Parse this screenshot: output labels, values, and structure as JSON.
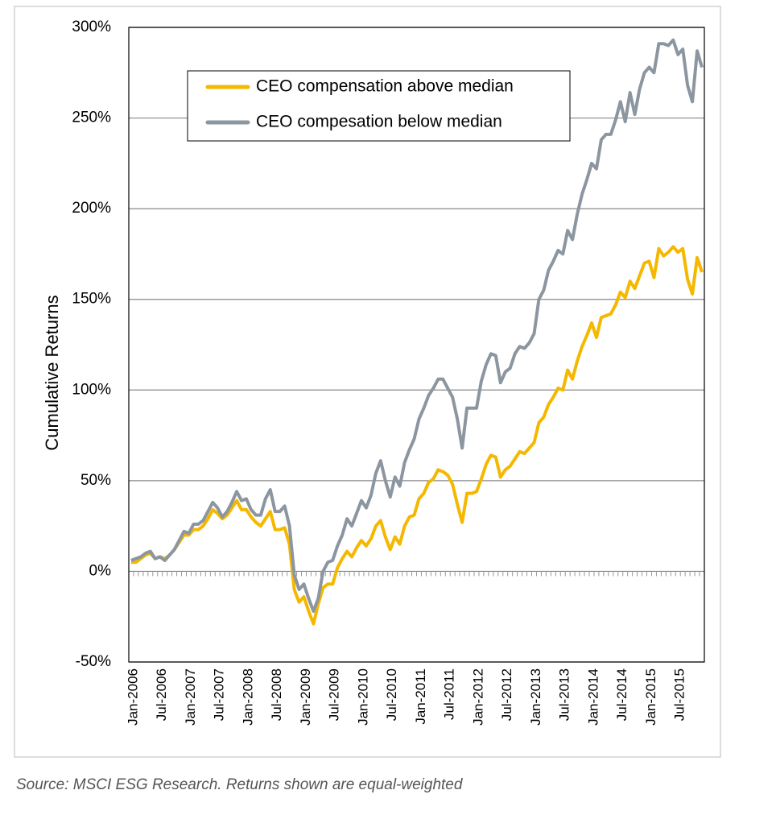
{
  "chart_data": {
    "type": "line",
    "y_label": "Cumulative Returns",
    "source": "Source:  MSCI ESG Research. Returns shown are equal-weighted",
    "categories": [
      "Jan-2006",
      null,
      null,
      null,
      null,
      null,
      "Jul-2006",
      null,
      null,
      null,
      null,
      null,
      "Jan-2007",
      null,
      null,
      null,
      null,
      null,
      "Jul-2007",
      null,
      null,
      null,
      null,
      null,
      "Jan-2008",
      null,
      null,
      null,
      null,
      null,
      "Jul-2008",
      null,
      null,
      null,
      null,
      null,
      "Jan-2009",
      null,
      null,
      null,
      null,
      null,
      "Jul-2009",
      null,
      null,
      null,
      null,
      null,
      "Jan-2010",
      null,
      null,
      null,
      null,
      null,
      "Jul-2010",
      null,
      null,
      null,
      null,
      null,
      "Jan-2011",
      null,
      null,
      null,
      null,
      null,
      "Jul-2011",
      null,
      null,
      null,
      null,
      null,
      "Jan-2012",
      null,
      null,
      null,
      null,
      null,
      "Jul-2012",
      null,
      null,
      null,
      null,
      null,
      "Jan-2013",
      null,
      null,
      null,
      null,
      null,
      "Jul-2013",
      null,
      null,
      null,
      null,
      null,
      "Jan-2014",
      null,
      null,
      null,
      null,
      null,
      "Jul-2014",
      null,
      null,
      null,
      null,
      null,
      "Jan-2015",
      null,
      null,
      null,
      null,
      null,
      "Jul-2015",
      null,
      null,
      null,
      null,
      null
    ],
    "series": [
      {
        "name": "CEO compensation above median",
        "color": "#f5b800",
        "values": [
          5,
          5,
          7,
          9,
          10,
          7,
          8,
          7,
          9,
          12,
          16,
          20,
          20,
          23,
          23,
          25,
          29,
          34,
          32,
          29,
          31,
          35,
          39,
          34,
          34,
          30,
          27,
          25,
          29,
          33,
          23,
          23,
          24,
          15,
          -10,
          -17,
          -14,
          -22,
          -29,
          -18,
          -9,
          -7,
          -7,
          2,
          7,
          11,
          8,
          13,
          17,
          14,
          18,
          25,
          28,
          19,
          12,
          19,
          15,
          25,
          30,
          31,
          40,
          43,
          49,
          51,
          56,
          55,
          53,
          48,
          37,
          27,
          43,
          43,
          44,
          51,
          59,
          64,
          63,
          52,
          56,
          58,
          62,
          66,
          65,
          68,
          71,
          82,
          85,
          92,
          96,
          101,
          100,
          111,
          106,
          116,
          124,
          130,
          137,
          129,
          140,
          141,
          142,
          147,
          154,
          151,
          160,
          156,
          163,
          170,
          171,
          162,
          178,
          174,
          176,
          179,
          176,
          178,
          161,
          153,
          173,
          165
        ]
      },
      {
        "name": "CEO compesation below median",
        "color": "#8c96a0",
        "values": [
          6,
          7,
          8,
          10,
          11,
          7,
          8,
          6,
          9,
          12,
          17,
          22,
          21,
          26,
          26,
          28,
          33,
          38,
          35,
          30,
          33,
          38,
          44,
          39,
          40,
          34,
          31,
          31,
          40,
          45,
          33,
          33,
          36,
          25,
          -2,
          -10,
          -7,
          -15,
          -22,
          -15,
          0,
          5,
          6,
          14,
          20,
          29,
          25,
          32,
          39,
          35,
          42,
          54,
          61,
          50,
          41,
          52,
          47,
          60,
          67,
          73,
          84,
          90,
          97,
          101,
          106,
          106,
          101,
          96,
          84,
          68,
          90,
          90,
          90,
          105,
          114,
          120,
          119,
          104,
          110,
          112,
          120,
          124,
          123,
          126,
          131,
          150,
          155,
          166,
          171,
          177,
          175,
          188,
          183,
          197,
          208,
          216,
          225,
          222,
          238,
          241,
          241,
          249,
          259,
          248,
          264,
          252,
          266,
          275,
          278,
          275,
          291,
          291,
          290,
          293,
          285,
          288,
          268,
          259,
          287,
          278
        ]
      }
    ],
    "ylim": [
      -50,
      300
    ],
    "yticks": [
      {
        "value": -50,
        "label": "-50%"
      },
      {
        "value": 0,
        "label": "0%"
      },
      {
        "value": 50,
        "label": "50%"
      },
      {
        "value": 100,
        "label": "100%"
      },
      {
        "value": 150,
        "label": "150%"
      },
      {
        "value": 200,
        "label": "200%"
      },
      {
        "value": 250,
        "label": "250%"
      },
      {
        "value": 300,
        "label": "300%"
      }
    ],
    "grid": true
  }
}
